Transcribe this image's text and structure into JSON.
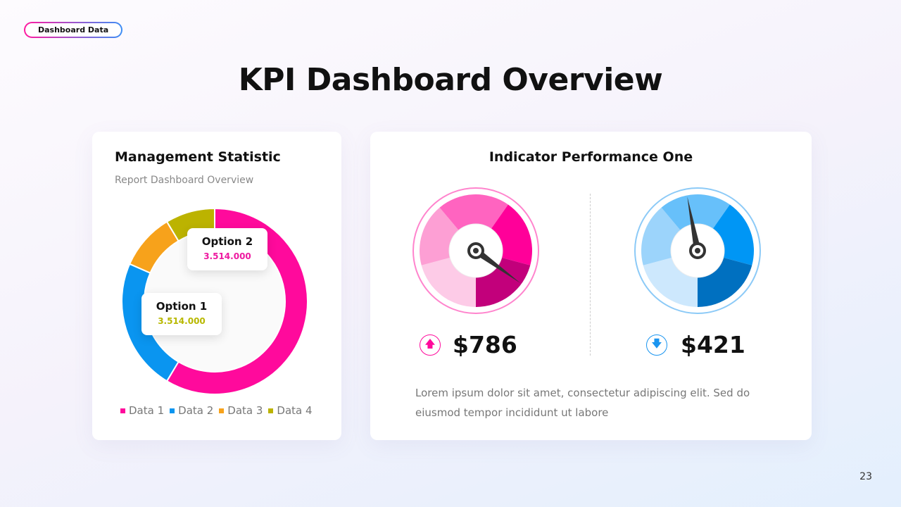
{
  "badge": "Dashboard Data",
  "title": "KPI Dashboard Overview",
  "left_card": {
    "title": "Management Statistic",
    "subtitle": "Report Dashboard Overview",
    "tooltips": [
      {
        "label": "Option 2",
        "value": "3.514.000",
        "color": "#ee1aa0"
      },
      {
        "label": "Option 1",
        "value": "3.514.000",
        "color": "#b8b800"
      }
    ]
  },
  "chart_data": {
    "type": "pie",
    "donut": true,
    "categories": [
      "Data 1",
      "Data 2",
      "Data 3",
      "Data 4"
    ],
    "values": [
      58.6,
      23,
      9.8,
      8.6
    ],
    "colors": [
      "#ff0a9c",
      "#0a95f0",
      "#f7a21b",
      "#bcb300"
    ],
    "legend": "bottom"
  },
  "right_card": {
    "title": "Indicator Performance One",
    "gauges": [
      {
        "value": "$786",
        "trend": "up",
        "trend_icon": "arrow-up-icon",
        "arrow": "🡅",
        "accent": "#ff0a9c",
        "level": 0.85,
        "colors": [
          "#fdcbe7",
          "#fd9fd4",
          "#ff64c0",
          "#ff0099",
          "#c2007b"
        ]
      },
      {
        "value": "$421",
        "trend": "down",
        "trend_icon": "arrow-down-icon",
        "arrow": "🡇",
        "accent": "#1a95f0",
        "level": 0.47,
        "colors": [
          "#cde8fd",
          "#9cd4fb",
          "#67c0fa",
          "#0096f5",
          "#0070c0"
        ]
      }
    ],
    "description": "Lorem ipsum dolor sit amet, consectetur adipiscing elit. Sed do eiusmod tempor incididunt ut labore"
  },
  "page_number": "23"
}
